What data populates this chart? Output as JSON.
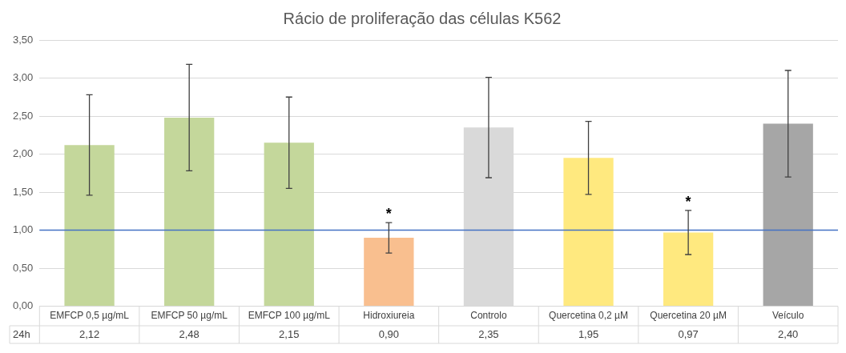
{
  "chart_data": {
    "type": "bar",
    "title": "Rácio de proliferação das células K562",
    "categories": [
      "EMFCP 0,5 µg/mL",
      "EMFCP 50 µg/mL",
      "EMFCP 100 µg/mL",
      "Hidroxiureia",
      "Controlo",
      "Quercetina 0,2 µM",
      "Quercetina 20 µM",
      "Veículo"
    ],
    "series": [
      {
        "name": "24h",
        "colors": [
          "#c4d79b",
          "#c4d79b",
          "#c4d79b",
          "#f9bf8f",
          "#d9d9d9",
          "#ffe97f",
          "#ffe97f",
          "#a6a6a6"
        ],
        "values": [
          2.12,
          2.48,
          2.15,
          0.9,
          2.35,
          1.95,
          0.97,
          2.4
        ],
        "errors": [
          0.66,
          0.7,
          0.6,
          0.2,
          0.66,
          0.48,
          0.29,
          0.7
        ],
        "value_labels": [
          "2,12",
          "2,48",
          "2,15",
          "0,90",
          "2,35",
          "1,95",
          "0,97",
          "2,40"
        ]
      }
    ],
    "ylim": [
      0,
      3.5
    ],
    "yticks": [
      {
        "value": 0,
        "label": "0,00"
      },
      {
        "value": 0.5,
        "label": "0,50"
      },
      {
        "value": 1,
        "label": "1,00"
      },
      {
        "value": 1.5,
        "label": "1,50"
      },
      {
        "value": 2,
        "label": "2,00"
      },
      {
        "value": 2.5,
        "label": "2,50"
      },
      {
        "value": 3,
        "label": "3,00"
      },
      {
        "value": 3.5,
        "label": "3,50"
      }
    ],
    "grid": "y",
    "legend": "bottom",
    "ref_lines": [
      {
        "axis": "y",
        "value": 1,
        "color": "#4472c4"
      }
    ],
    "annotations": [
      {
        "text": "*",
        "x": "Hidroxiureia",
        "y": 1.1
      },
      {
        "text": "*",
        "x": "Quercetina 20 µM",
        "y": 1.26
      }
    ]
  }
}
